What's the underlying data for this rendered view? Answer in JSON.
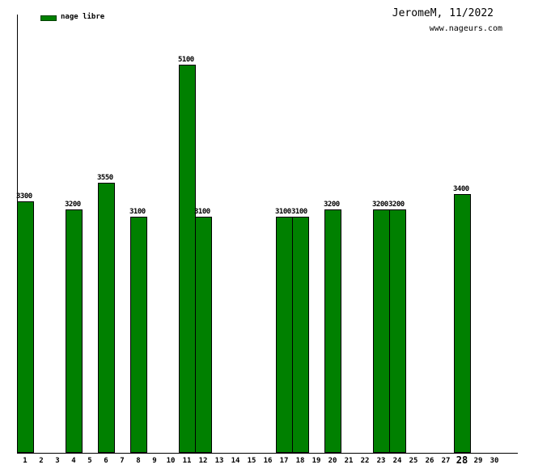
{
  "header": {
    "title": "JeromeM, 11/2022",
    "website": "www.nageurs.com"
  },
  "legend": {
    "label": "nage libre",
    "swatch_color": "#008000"
  },
  "chart_data": {
    "type": "bar",
    "title": "JeromeM, 11/2022",
    "xlabel": "",
    "ylabel": "",
    "series_name": "nage libre",
    "bar_color": "#008000",
    "bar_border_color": "#000000",
    "axis_color": "#000000",
    "grid": false,
    "legend_position": "top-left",
    "value_labels": true,
    "ylim": [
      0,
      5760
    ],
    "categories": [
      1,
      2,
      3,
      4,
      5,
      6,
      7,
      8,
      9,
      10,
      11,
      12,
      13,
      14,
      15,
      16,
      17,
      18,
      19,
      20,
      21,
      22,
      23,
      24,
      25,
      26,
      27,
      28,
      29,
      30
    ],
    "values": [
      3300,
      null,
      null,
      3200,
      null,
      3550,
      null,
      3100,
      null,
      null,
      5100,
      3100,
      null,
      null,
      null,
      null,
      3100,
      3100,
      null,
      3200,
      null,
      null,
      3200,
      3200,
      null,
      null,
      null,
      3400,
      null,
      null
    ],
    "bars": [
      {
        "day": 1,
        "value": 3300
      },
      {
        "day": 4,
        "value": 3200
      },
      {
        "day": 6,
        "value": 3550
      },
      {
        "day": 8,
        "value": 3100
      },
      {
        "day": 11,
        "value": 5100
      },
      {
        "day": 12,
        "value": 3100
      },
      {
        "day": 17,
        "value": 3100
      },
      {
        "day": 18,
        "value": 3100
      },
      {
        "day": 20,
        "value": 3200
      },
      {
        "day": 23,
        "value": 3200
      },
      {
        "day": 24,
        "value": 3200
      },
      {
        "day": 28,
        "value": 3400
      }
    ],
    "highlighted_tick": 28
  }
}
